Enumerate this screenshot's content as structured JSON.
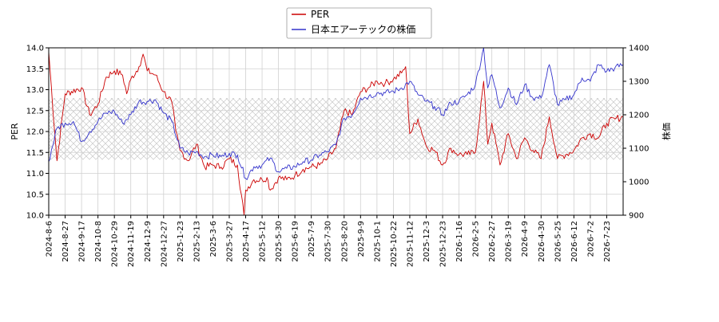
{
  "chart_data": {
    "type": "line",
    "legend": {
      "placement": "top-center",
      "entries": [
        {
          "label": "PER",
          "color": "#cc0000"
        },
        {
          "label": "日本エアーテックの株価",
          "color": "#3333cc"
        }
      ]
    },
    "ylabel_left": "PER",
    "ylabel_right": "株価",
    "y_left": {
      "min": 10.0,
      "max": 14.0,
      "ticks": [
        "10.0",
        "10.5",
        "11.0",
        "11.5",
        "12.0",
        "12.5",
        "13.0",
        "13.5",
        "14.0"
      ]
    },
    "y_right": {
      "min": 900,
      "max": 1400,
      "ticks": [
        "900",
        "1000",
        "1100",
        "1200",
        "1300",
        "1400"
      ]
    },
    "hatched_band": {
      "axis": "right",
      "from": 1066,
      "to": 1250
    },
    "grid": true,
    "x_tick_labels": [
      "2024-8-6",
      "2024-8-27",
      "2024-9-17",
      "2024-10-8",
      "2024-10-29",
      "2024-11-19",
      "2024-12-9",
      "2024-12-27",
      "2025-1-23",
      "2025-2-13",
      "2025-3-6",
      "2025-3-27",
      "2025-4-17",
      "2025-5-12",
      "2025-5-30",
      "2025-6-19",
      "2025-7-9",
      "2025-7-30",
      "2025-8-20",
      "2025-9-9",
      "2025-10-1",
      "2025-10-22",
      "2025-11-12",
      "2025-12-3",
      "2025-12-23",
      "2026-1-16",
      "2026-2-5",
      "2026-2-27",
      "2026-3-19",
      "2026-4-9",
      "2026-4-30",
      "2026-5-25",
      "2026-6-12",
      "2026-7-2",
      "2026-7-23"
    ],
    "series": [
      {
        "name": "PER",
        "axis": "left",
        "color": "#cc0000",
        "values": [
          [
            0,
            13.9
          ],
          [
            0.5,
            11.3
          ],
          [
            1,
            12.9
          ],
          [
            2,
            13.05
          ],
          [
            2.5,
            12.4
          ],
          [
            3,
            12.65
          ],
          [
            3.5,
            13.3
          ],
          [
            4,
            13.45
          ],
          [
            4.5,
            13.35
          ],
          [
            4.75,
            12.9
          ],
          [
            5,
            13.25
          ],
          [
            5.5,
            13.55
          ],
          [
            5.75,
            13.85
          ],
          [
            6,
            13.45
          ],
          [
            6.5,
            13.35
          ],
          [
            7,
            12.95
          ],
          [
            7.5,
            12.7
          ],
          [
            7.75,
            12.0
          ],
          [
            8,
            11.55
          ],
          [
            8.5,
            11.3
          ],
          [
            9,
            11.7
          ],
          [
            9.5,
            11.15
          ],
          [
            10,
            11.2
          ],
          [
            10.5,
            11.15
          ],
          [
            11,
            11.35
          ],
          [
            11.5,
            11.2
          ],
          [
            11.9,
            10.0
          ],
          [
            12,
            10.6
          ],
          [
            12.5,
            10.85
          ],
          [
            13,
            10.85
          ],
          [
            13.3,
            10.9
          ],
          [
            13.5,
            10.6
          ],
          [
            14,
            10.9
          ],
          [
            14.5,
            10.85
          ],
          [
            15,
            10.95
          ],
          [
            15.5,
            11.1
          ],
          [
            16,
            11.15
          ],
          [
            16.5,
            11.2
          ],
          [
            17,
            11.35
          ],
          [
            17.5,
            11.6
          ],
          [
            18,
            12.5
          ],
          [
            18.5,
            12.4
          ],
          [
            19,
            12.95
          ],
          [
            19.5,
            13.05
          ],
          [
            20,
            13.2
          ],
          [
            20.5,
            13.15
          ],
          [
            21,
            13.25
          ],
          [
            21.5,
            13.4
          ],
          [
            21.75,
            13.55
          ],
          [
            22,
            11.95
          ],
          [
            22.5,
            12.3
          ],
          [
            23,
            11.65
          ],
          [
            23.5,
            11.55
          ],
          [
            24,
            11.2
          ],
          [
            24.5,
            11.6
          ],
          [
            25,
            11.45
          ],
          [
            25.5,
            11.45
          ],
          [
            26,
            11.5
          ],
          [
            26.5,
            13.2
          ],
          [
            26.75,
            11.7
          ],
          [
            27,
            12.2
          ],
          [
            27.5,
            11.2
          ],
          [
            28,
            11.95
          ],
          [
            28.5,
            11.35
          ],
          [
            29,
            11.85
          ],
          [
            29.5,
            11.55
          ],
          [
            30,
            11.35
          ],
          [
            30.5,
            12.35
          ],
          [
            31,
            11.35
          ],
          [
            31.5,
            11.45
          ],
          [
            32,
            11.55
          ],
          [
            32.5,
            11.85
          ],
          [
            33,
            11.95
          ],
          [
            33.5,
            11.85
          ],
          [
            34,
            12.2
          ],
          [
            34.5,
            12.3
          ],
          [
            35,
            12.35
          ]
        ]
      },
      {
        "name": "日本エアーテックの株価",
        "axis": "right",
        "color": "#3333cc",
        "values": [
          [
            0,
            1060
          ],
          [
            0.5,
            1160
          ],
          [
            1,
            1175
          ],
          [
            1.5,
            1180
          ],
          [
            2,
            1120
          ],
          [
            2.5,
            1150
          ],
          [
            3,
            1180
          ],
          [
            3.5,
            1205
          ],
          [
            4,
            1210
          ],
          [
            4.5,
            1175
          ],
          [
            5,
            1200
          ],
          [
            5.5,
            1240
          ],
          [
            6,
            1240
          ],
          [
            6.5,
            1245
          ],
          [
            7,
            1205
          ],
          [
            7.5,
            1180
          ],
          [
            8,
            1100
          ],
          [
            8.5,
            1085
          ],
          [
            9,
            1090
          ],
          [
            9.5,
            1075
          ],
          [
            10,
            1080
          ],
          [
            10.5,
            1075
          ],
          [
            11,
            1085
          ],
          [
            11.5,
            1080
          ],
          [
            12,
            1010
          ],
          [
            12.5,
            1045
          ],
          [
            13,
            1050
          ],
          [
            13.5,
            1070
          ],
          [
            14,
            1030
          ],
          [
            14.5,
            1040
          ],
          [
            15,
            1045
          ],
          [
            15.5,
            1060
          ],
          [
            16,
            1065
          ],
          [
            16.5,
            1080
          ],
          [
            17,
            1090
          ],
          [
            17.5,
            1110
          ],
          [
            18,
            1190
          ],
          [
            18.5,
            1200
          ],
          [
            19,
            1250
          ],
          [
            19.5,
            1255
          ],
          [
            20,
            1265
          ],
          [
            20.5,
            1265
          ],
          [
            21,
            1270
          ],
          [
            21.5,
            1280
          ],
          [
            22,
            1300
          ],
          [
            22.5,
            1260
          ],
          [
            23,
            1240
          ],
          [
            23.5,
            1225
          ],
          [
            24,
            1200
          ],
          [
            24.5,
            1235
          ],
          [
            25,
            1240
          ],
          [
            25.5,
            1260
          ],
          [
            26,
            1290
          ],
          [
            26.5,
            1400
          ],
          [
            26.75,
            1280
          ],
          [
            27,
            1320
          ],
          [
            27.5,
            1220
          ],
          [
            28,
            1280
          ],
          [
            28.5,
            1230
          ],
          [
            29,
            1290
          ],
          [
            29.5,
            1250
          ],
          [
            30,
            1250
          ],
          [
            30.5,
            1350
          ],
          [
            31,
            1230
          ],
          [
            31.5,
            1245
          ],
          [
            32,
            1260
          ],
          [
            32.5,
            1310
          ],
          [
            33,
            1300
          ],
          [
            33.5,
            1350
          ],
          [
            34,
            1330
          ],
          [
            34.5,
            1340
          ],
          [
            35,
            1350
          ]
        ]
      }
    ]
  }
}
